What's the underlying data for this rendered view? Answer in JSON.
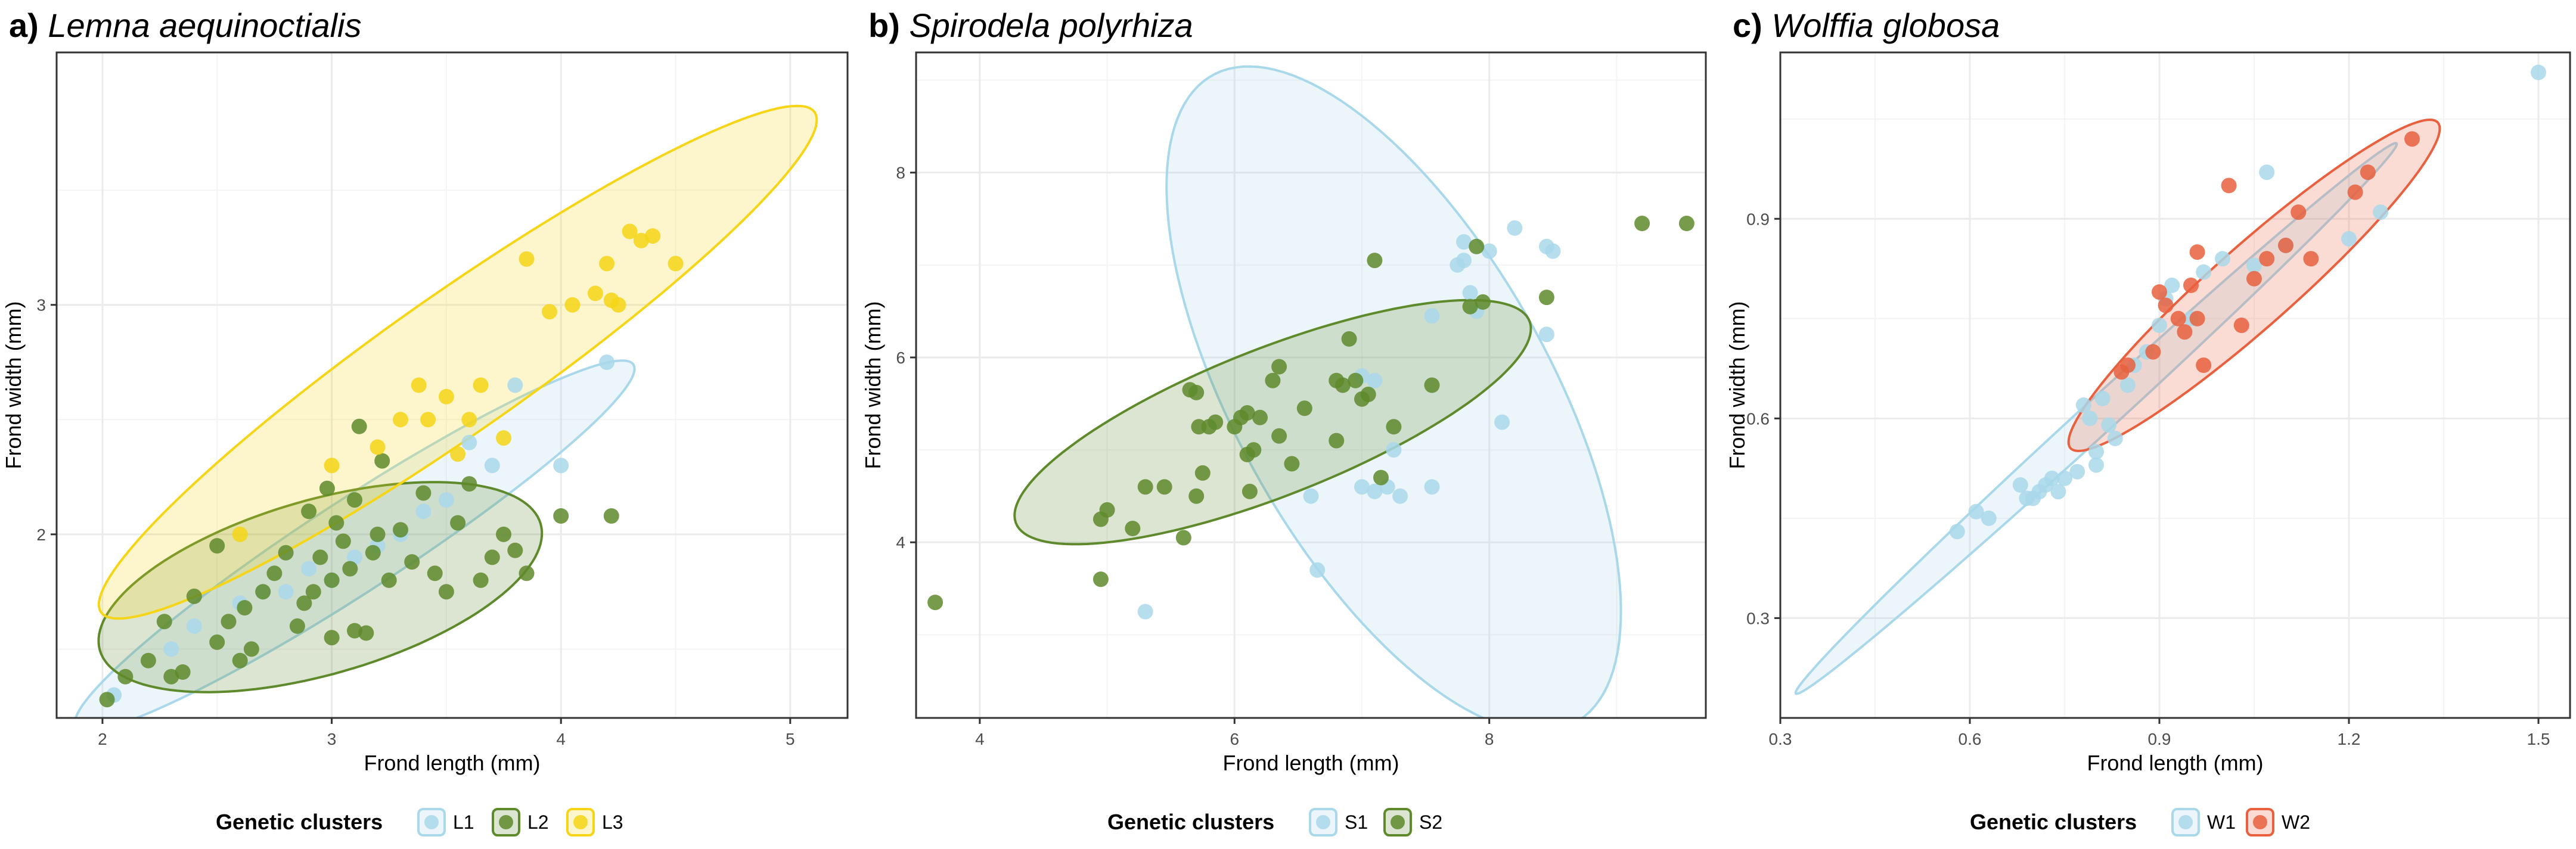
{
  "colors": {
    "L1": "#a9d8ea",
    "L2": "#5e8a2c",
    "L3": "#f5d516",
    "S1": "#a9d8ea",
    "S2": "#5e8a2c",
    "W1": "#a9d8ea",
    "W2": "#e8603e",
    "grid": "#ebebeb",
    "axis": "#333333",
    "tick_text": "#4d4d4d"
  },
  "chart_data": [
    {
      "type": "scatter",
      "panel_tag": "a)",
      "title": "Lemna aequinoctialis",
      "xlabel": "Frond length (mm)",
      "ylabel": "Frond width (mm)",
      "xlim": [
        1.8,
        5.25
      ],
      "ylim": [
        1.2,
        4.1
      ],
      "xticks": [
        2,
        3,
        4,
        5
      ],
      "yticks": [
        2,
        3
      ],
      "legend_title": "Genetic clusters",
      "legend_position": "bottom",
      "series": [
        {
          "name": "L1",
          "color_key": "L1",
          "points": [
            [
              2.05,
              1.3
            ],
            [
              2.4,
              1.6
            ],
            [
              2.6,
              1.7
            ],
            [
              2.8,
              1.75
            ],
            [
              3.0,
              1.8
            ],
            [
              3.1,
              1.9
            ],
            [
              3.3,
              2.0
            ],
            [
              3.5,
              2.15
            ],
            [
              3.7,
              2.3
            ],
            [
              3.6,
              2.4
            ],
            [
              3.8,
              2.65
            ],
            [
              4.0,
              2.3
            ],
            [
              4.2,
              2.75
            ],
            [
              2.3,
              1.5
            ],
            [
              2.9,
              1.85
            ],
            [
              3.2,
              1.95
            ],
            [
              2.7,
              1.75
            ],
            [
              3.4,
              2.1
            ]
          ],
          "ellipse": {
            "cx": 3.1,
            "cy": 1.95,
            "rx": 1.45,
            "ry": 0.2,
            "angle_deg": 33
          }
        },
        {
          "name": "L2",
          "color_key": "L2",
          "points": [
            [
              2.02,
              1.28
            ],
            [
              2.1,
              1.38
            ],
            [
              2.2,
              1.45
            ],
            [
              2.27,
              1.62
            ],
            [
              2.3,
              1.38
            ],
            [
              2.35,
              1.4
            ],
            [
              2.4,
              1.73
            ],
            [
              2.5,
              1.95
            ],
            [
              2.5,
              1.53
            ],
            [
              2.55,
              1.62
            ],
            [
              2.6,
              1.45
            ],
            [
              2.62,
              1.68
            ],
            [
              2.65,
              1.5
            ],
            [
              2.7,
              1.75
            ],
            [
              2.75,
              1.83
            ],
            [
              2.8,
              1.92
            ],
            [
              2.85,
              1.6
            ],
            [
              2.88,
              1.7
            ],
            [
              2.9,
              2.1
            ],
            [
              2.92,
              1.75
            ],
            [
              2.95,
              1.9
            ],
            [
              3.0,
              1.55
            ],
            [
              3.0,
              1.8
            ],
            [
              3.02,
              2.05
            ],
            [
              3.05,
              1.97
            ],
            [
              3.08,
              1.85
            ],
            [
              3.1,
              2.15
            ],
            [
              3.12,
              2.47
            ],
            [
              3.15,
              1.57
            ],
            [
              3.18,
              1.92
            ],
            [
              3.2,
              2.0
            ],
            [
              3.25,
              1.8
            ],
            [
              3.3,
              2.02
            ],
            [
              3.35,
              1.88
            ],
            [
              3.4,
              2.18
            ],
            [
              3.45,
              1.83
            ],
            [
              3.5,
              1.75
            ],
            [
              3.55,
              2.05
            ],
            [
              3.6,
              2.22
            ],
            [
              3.65,
              1.8
            ],
            [
              3.7,
              1.9
            ],
            [
              3.75,
              2.0
            ],
            [
              3.8,
              1.93
            ],
            [
              3.85,
              1.83
            ],
            [
              4.0,
              2.08
            ],
            [
              4.22,
              2.08
            ],
            [
              2.98,
              2.2
            ],
            [
              3.22,
              2.32
            ],
            [
              3.1,
              1.58
            ]
          ],
          "ellipse": {
            "cx": 2.95,
            "cy": 1.77,
            "rx": 1.0,
            "ry": 0.38,
            "angle_deg": 16
          }
        },
        {
          "name": "L3",
          "color_key": "L3",
          "points": [
            [
              2.6,
              2.0
            ],
            [
              3.0,
              2.3
            ],
            [
              3.2,
              2.38
            ],
            [
              3.3,
              2.5
            ],
            [
              3.38,
              2.65
            ],
            [
              3.42,
              2.5
            ],
            [
              3.5,
              2.6
            ],
            [
              3.55,
              2.35
            ],
            [
              3.6,
              2.5
            ],
            [
              3.65,
              2.65
            ],
            [
              3.75,
              2.42
            ],
            [
              3.85,
              3.2
            ],
            [
              3.95,
              2.97
            ],
            [
              4.05,
              3.0
            ],
            [
              4.15,
              3.05
            ],
            [
              4.2,
              3.18
            ],
            [
              4.22,
              3.02
            ],
            [
              4.25,
              3.0
            ],
            [
              4.3,
              3.32
            ],
            [
              4.35,
              3.28
            ],
            [
              4.4,
              3.3
            ],
            [
              4.5,
              3.18
            ]
          ],
          "ellipse": {
            "cx": 3.55,
            "cy": 2.75,
            "rx": 1.9,
            "ry": 0.3,
            "angle_deg": 35
          }
        }
      ]
    },
    {
      "type": "scatter",
      "panel_tag": "b)",
      "title": "Spirodela polyrhiza",
      "xlabel": "Frond length (mm)",
      "ylabel": "Frond width (mm)",
      "xlim": [
        3.5,
        9.7
      ],
      "ylim": [
        2.1,
        9.3
      ],
      "xticks": [
        4,
        6,
        8
      ],
      "yticks": [
        4,
        6,
        8
      ],
      "legend_title": "Genetic clusters",
      "legend_position": "bottom",
      "series": [
        {
          "name": "S1",
          "color_key": "S1",
          "points": [
            [
              5.3,
              3.25
            ],
            [
              6.6,
              4.5
            ],
            [
              6.65,
              3.7
            ],
            [
              7.0,
              4.6
            ],
            [
              7.1,
              4.55
            ],
            [
              7.2,
              4.6
            ],
            [
              7.3,
              4.5
            ],
            [
              7.55,
              4.6
            ],
            [
              7.0,
              5.8
            ],
            [
              7.1,
              5.75
            ],
            [
              7.55,
              6.45
            ],
            [
              7.75,
              7.0
            ],
            [
              7.8,
              7.05
            ],
            [
              7.8,
              7.25
            ],
            [
              7.85,
              6.7
            ],
            [
              7.9,
              6.5
            ],
            [
              8.0,
              7.15
            ],
            [
              8.2,
              7.4
            ],
            [
              8.1,
              5.3
            ],
            [
              8.45,
              6.25
            ],
            [
              8.45,
              7.2
            ],
            [
              7.25,
              5.0
            ],
            [
              8.5,
              7.15
            ]
          ],
          "ellipse": {
            "cx": 7.25,
            "cy": 5.55,
            "rx": 1.3,
            "ry": 3.8,
            "angle_deg": 20
          }
        },
        {
          "name": "S2",
          "color_key": "S2",
          "points": [
            [
              3.65,
              3.35
            ],
            [
              4.95,
              3.6
            ],
            [
              4.95,
              4.25
            ],
            [
              5.0,
              4.35
            ],
            [
              5.2,
              4.15
            ],
            [
              5.3,
              4.6
            ],
            [
              5.45,
              4.6
            ],
            [
              5.6,
              4.05
            ],
            [
              5.65,
              5.65
            ],
            [
              5.7,
              4.5
            ],
            [
              5.7,
              5.62
            ],
            [
              5.72,
              5.25
            ],
            [
              5.75,
              4.75
            ],
            [
              5.8,
              5.25
            ],
            [
              5.85,
              5.3
            ],
            [
              6.0,
              5.25
            ],
            [
              6.05,
              5.35
            ],
            [
              6.1,
              5.4
            ],
            [
              6.1,
              4.95
            ],
            [
              6.12,
              4.55
            ],
            [
              6.2,
              5.35
            ],
            [
              6.3,
              5.75
            ],
            [
              6.35,
              5.9
            ],
            [
              6.35,
              5.15
            ],
            [
              6.45,
              4.85
            ],
            [
              6.55,
              5.45
            ],
            [
              6.8,
              5.75
            ],
            [
              6.85,
              5.7
            ],
            [
              6.9,
              6.2
            ],
            [
              6.95,
              5.75
            ],
            [
              7.05,
              5.6
            ],
            [
              7.0,
              5.55
            ],
            [
              7.1,
              7.05
            ],
            [
              7.15,
              4.7
            ],
            [
              7.55,
              5.7
            ],
            [
              7.85,
              6.55
            ],
            [
              7.95,
              6.6
            ],
            [
              8.45,
              6.65
            ],
            [
              9.2,
              7.45
            ],
            [
              9.55,
              7.45
            ],
            [
              7.9,
              7.2
            ],
            [
              6.8,
              5.1
            ],
            [
              7.25,
              5.25
            ],
            [
              6.15,
              5.0
            ]
          ],
          "ellipse": {
            "cx": 6.3,
            "cy": 5.3,
            "rx": 2.3,
            "ry": 0.75,
            "angle_deg": 30
          }
        }
      ]
    },
    {
      "type": "scatter",
      "panel_tag": "c)",
      "title": "Wolffia globosa",
      "xlabel": "Frond length (mm)",
      "ylabel": "Frond width (mm)",
      "xlim": [
        0.3,
        1.55
      ],
      "ylim": [
        0.15,
        1.15
      ],
      "xticks": [
        0.3,
        0.6,
        0.9,
        1.2,
        1.5
      ],
      "yticks": [
        0.3,
        0.6,
        0.9
      ],
      "legend_title": "Genetic clusters",
      "legend_position": "bottom",
      "series": [
        {
          "name": "W1",
          "color_key": "W1",
          "points": [
            [
              0.58,
              0.43
            ],
            [
              0.61,
              0.46
            ],
            [
              0.63,
              0.45
            ],
            [
              0.68,
              0.5
            ],
            [
              0.69,
              0.48
            ],
            [
              0.7,
              0.48
            ],
            [
              0.71,
              0.49
            ],
            [
              0.72,
              0.5
            ],
            [
              0.73,
              0.51
            ],
            [
              0.74,
              0.49
            ],
            [
              0.75,
              0.51
            ],
            [
              0.77,
              0.52
            ],
            [
              0.79,
              0.6
            ],
            [
              0.8,
              0.55
            ],
            [
              0.8,
              0.53
            ],
            [
              0.81,
              0.63
            ],
            [
              0.82,
              0.59
            ],
            [
              0.83,
              0.57
            ],
            [
              0.85,
              0.65
            ],
            [
              0.86,
              0.68
            ],
            [
              0.88,
              0.7
            ],
            [
              0.9,
              0.74
            ],
            [
              0.91,
              0.78
            ],
            [
              0.92,
              0.8
            ],
            [
              0.95,
              0.75
            ],
            [
              0.97,
              0.82
            ],
            [
              1.0,
              0.84
            ],
            [
              1.05,
              0.83
            ],
            [
              1.07,
              0.97
            ],
            [
              1.1,
              0.86
            ],
            [
              1.2,
              0.87
            ],
            [
              1.25,
              0.91
            ],
            [
              1.5,
              1.12
            ],
            [
              0.78,
              0.62
            ]
          ],
          "ellipse": {
            "cx": 0.8,
            "cy": 0.6,
            "rx": 0.63,
            "ry": 0.026,
            "angle_deg": 41
          }
        },
        {
          "name": "W2",
          "color_key": "W2",
          "points": [
            [
              0.84,
              0.67
            ],
            [
              0.85,
              0.68
            ],
            [
              0.89,
              0.7
            ],
            [
              0.9,
              0.79
            ],
            [
              0.91,
              0.77
            ],
            [
              0.93,
              0.75
            ],
            [
              0.94,
              0.73
            ],
            [
              0.95,
              0.8
            ],
            [
              0.96,
              0.75
            ],
            [
              0.96,
              0.85
            ],
            [
              0.97,
              0.68
            ],
            [
              1.01,
              0.95
            ],
            [
              1.03,
              0.74
            ],
            [
              1.05,
              0.81
            ],
            [
              1.07,
              0.84
            ],
            [
              1.1,
              0.86
            ],
            [
              1.12,
              0.91
            ],
            [
              1.14,
              0.84
            ],
            [
              1.21,
              0.94
            ],
            [
              1.23,
              0.97
            ],
            [
              1.3,
              1.02
            ]
          ],
          "ellipse": {
            "cx": 1.05,
            "cy": 0.8,
            "rx": 0.38,
            "ry": 0.062,
            "angle_deg": 40
          }
        }
      ]
    }
  ]
}
